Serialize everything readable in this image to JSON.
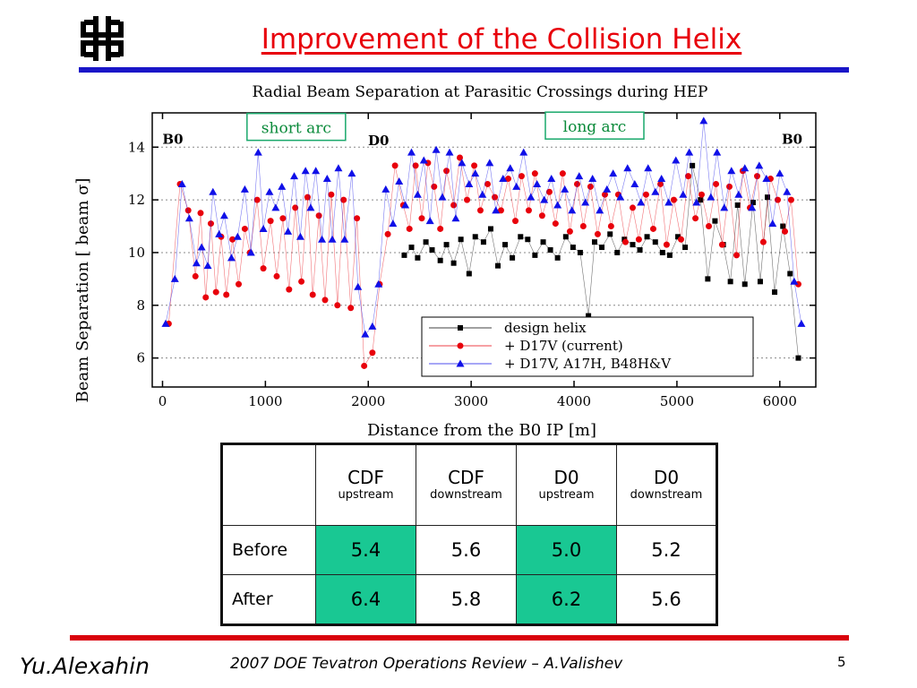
{
  "slide": {
    "title": "Improvement of the Collision Helix",
    "footer_author": "Yu.Alexahin",
    "footer_event": "2007 DOE Tevatron Operations Review – A.Valishev",
    "page_number": "5",
    "logo_icon": "fermilab-logo-icon",
    "colors": {
      "title": "#e8000b",
      "top_rule": "#1a16c8",
      "bottom_rule": "#d9000b",
      "highlight": "#19c893"
    }
  },
  "chart_data": {
    "type": "scatter",
    "title": "Radial Beam Separation at Parasitic Crossings during HEP",
    "xlabel": "Distance from the B0 IP [m]",
    "ylabel": "Beam Separation  [ beam σ]",
    "xlim": [
      -100,
      6350
    ],
    "ylim": [
      4.9,
      15.3
    ],
    "xticks": [
      0,
      1000,
      2000,
      3000,
      4000,
      5000,
      6000
    ],
    "yticks": [
      6,
      8,
      10,
      12,
      14
    ],
    "grid": "horizontal dotted",
    "legend_position": "bottom-right",
    "annotations": [
      {
        "text": "short arc",
        "x": 1300,
        "y": 14.7,
        "boxed": true
      },
      {
        "text": "long  arc",
        "x": 4200,
        "y": 14.75,
        "boxed": true
      },
      {
        "text": "B0",
        "x": 100,
        "y": 14.3
      },
      {
        "text": "D0",
        "x": 2100,
        "y": 14.25
      },
      {
        "text": "B0",
        "x": 6120,
        "y": 14.3
      }
    ],
    "series": [
      {
        "name": "design helix",
        "marker": "square",
        "color": "#000000",
        "x": [
          2350,
          2420,
          2480,
          2560,
          2620,
          2700,
          2760,
          2830,
          2900,
          2980,
          3040,
          3120,
          3190,
          3260,
          3330,
          3400,
          3480,
          3550,
          3620,
          3700,
          3770,
          3840,
          3920,
          3990,
          4060,
          4140,
          4200,
          4270,
          4350,
          4420,
          4490,
          4570,
          4640,
          4710,
          4790,
          4860,
          4930,
          5010,
          5080,
          5150,
          5230,
          5300,
          5370,
          5450,
          5520,
          5590,
          5660,
          5740,
          5810,
          5880,
          5950,
          6030,
          6100,
          6180
        ],
        "y": [
          9.9,
          10.2,
          9.8,
          10.4,
          10.1,
          9.7,
          10.3,
          9.6,
          10.5,
          9.2,
          10.6,
          10.4,
          10.9,
          9.5,
          10.3,
          9.8,
          10.6,
          10.5,
          9.9,
          10.4,
          10.1,
          9.8,
          10.6,
          10.2,
          10.0,
          7.6,
          10.4,
          10.2,
          10.7,
          10.0,
          10.5,
          10.3,
          10.1,
          10.6,
          10.4,
          10.0,
          9.9,
          10.6,
          10.2,
          13.3,
          12.0,
          9.0,
          11.2,
          10.3,
          8.9,
          11.8,
          8.8,
          11.9,
          8.9,
          12.1,
          8.5,
          11.0,
          9.2,
          6.0
        ],
        "note": "design helix markers also present across the long arc; values approximate"
      },
      {
        "name": "+ D17V  (current)",
        "marker": "circle",
        "color": "#e8000b",
        "x": [
          60,
          170,
          250,
          320,
          370,
          420,
          470,
          520,
          570,
          620,
          680,
          740,
          800,
          850,
          920,
          980,
          1050,
          1110,
          1170,
          1230,
          1290,
          1350,
          1410,
          1460,
          1520,
          1580,
          1640,
          1700,
          1760,
          1830,
          1890,
          1960,
          2040,
          2110,
          2190,
          2260,
          2340,
          2400,
          2460,
          2520,
          2580,
          2640,
          2700,
          2760,
          2830,
          2890,
          2960,
          3030,
          3090,
          3160,
          3230,
          3290,
          3360,
          3430,
          3490,
          3560,
          3620,
          3690,
          3760,
          3820,
          3890,
          3960,
          4030,
          4090,
          4160,
          4230,
          4300,
          4360,
          4430,
          4500,
          4570,
          4630,
          4700,
          4770,
          4840,
          4900,
          4970,
          5040,
          5110,
          5180,
          5240,
          5310,
          5380,
          5440,
          5510,
          5580,
          5640,
          5710,
          5780,
          5840,
          5910,
          5980,
          6050,
          6110,
          6180
        ],
        "y": [
          7.3,
          12.6,
          11.6,
          9.1,
          11.5,
          8.3,
          11.1,
          8.5,
          10.6,
          8.4,
          10.5,
          8.8,
          10.9,
          10.0,
          12.0,
          9.4,
          11.2,
          9.1,
          11.3,
          8.6,
          11.7,
          8.9,
          12.1,
          8.4,
          11.4,
          8.2,
          12.2,
          8.0,
          12.0,
          7.9,
          11.3,
          5.7,
          6.2,
          8.8,
          10.7,
          13.3,
          11.8,
          10.9,
          13.3,
          11.3,
          13.4,
          12.5,
          10.9,
          13.1,
          11.8,
          13.6,
          12.0,
          13.3,
          11.6,
          12.6,
          12.1,
          11.6,
          12.8,
          11.2,
          12.9,
          11.6,
          13.0,
          11.4,
          12.3,
          11.1,
          13.0,
          10.8,
          12.6,
          11.0,
          12.5,
          10.7,
          12.2,
          11.0,
          12.2,
          10.4,
          11.7,
          10.5,
          12.2,
          10.9,
          12.6,
          10.3,
          12.0,
          10.5,
          12.9,
          11.3,
          12.2,
          11.0,
          12.6,
          10.3,
          12.5,
          9.9,
          13.1,
          11.7,
          12.9,
          10.4,
          12.8,
          12.0,
          10.8,
          12.0,
          8.8
        ]
      },
      {
        "name": "+ D17V, A17H, B48H&V",
        "marker": "triangle",
        "color": "#1010e8",
        "x": [
          30,
          120,
          190,
          260,
          330,
          380,
          440,
          490,
          550,
          600,
          670,
          730,
          800,
          860,
          930,
          980,
          1040,
          1100,
          1160,
          1220,
          1280,
          1340,
          1390,
          1440,
          1490,
          1550,
          1600,
          1650,
          1710,
          1770,
          1840,
          1900,
          1970,
          2040,
          2100,
          2170,
          2240,
          2300,
          2360,
          2420,
          2480,
          2540,
          2600,
          2660,
          2720,
          2790,
          2850,
          2910,
          2980,
          3040,
          3110,
          3180,
          3240,
          3310,
          3380,
          3440,
          3510,
          3580,
          3640,
          3710,
          3780,
          3840,
          3910,
          3980,
          4050,
          4110,
          4180,
          4250,
          4320,
          4380,
          4450,
          4520,
          4590,
          4650,
          4720,
          4790,
          4850,
          4920,
          4990,
          5060,
          5120,
          5190,
          5260,
          5330,
          5390,
          5460,
          5530,
          5600,
          5660,
          5730,
          5800,
          5870,
          5930,
          6000,
          6070,
          6140,
          6210
        ],
        "y": [
          7.3,
          9.0,
          12.6,
          11.3,
          9.6,
          10.2,
          9.5,
          12.3,
          10.7,
          11.4,
          9.8,
          10.6,
          12.4,
          10.0,
          13.8,
          10.9,
          12.3,
          11.7,
          12.5,
          10.8,
          12.9,
          10.6,
          13.1,
          11.7,
          13.1,
          10.5,
          12.8,
          10.5,
          13.2,
          10.5,
          13.0,
          8.7,
          6.9,
          7.2,
          8.8,
          12.4,
          11.1,
          12.7,
          11.8,
          13.8,
          12.2,
          13.5,
          11.2,
          13.9,
          12.1,
          13.8,
          11.3,
          13.4,
          12.6,
          13.0,
          12.2,
          13.4,
          11.6,
          12.8,
          13.2,
          12.5,
          13.8,
          12.1,
          12.6,
          12.0,
          12.8,
          11.8,
          12.4,
          11.6,
          12.9,
          11.9,
          12.8,
          11.6,
          12.4,
          13.0,
          12.1,
          13.2,
          12.6,
          11.9,
          13.2,
          12.3,
          12.8,
          11.9,
          13.5,
          12.2,
          13.8,
          11.9,
          15.0,
          12.1,
          13.8,
          11.7,
          13.1,
          12.2,
          13.2,
          11.7,
          13.3,
          12.8,
          11.1,
          13.0,
          12.3,
          8.9,
          7.3
        ]
      }
    ]
  },
  "table": {
    "headers": [
      {
        "main": "",
        "sub": ""
      },
      {
        "main": "CDF",
        "sub": "upstream"
      },
      {
        "main": "CDF",
        "sub": "downstream"
      },
      {
        "main": "D0",
        "sub": "upstream"
      },
      {
        "main": "D0",
        "sub": "downstream"
      }
    ],
    "rows": [
      {
        "label": "Before",
        "values": [
          "5.4",
          "5.6",
          "5.0",
          "5.2"
        ],
        "highlighted": [
          true,
          false,
          true,
          false
        ]
      },
      {
        "label": "After",
        "values": [
          "6.4",
          "5.8",
          "6.2",
          "5.6"
        ],
        "highlighted": [
          true,
          false,
          true,
          false
        ]
      }
    ]
  }
}
